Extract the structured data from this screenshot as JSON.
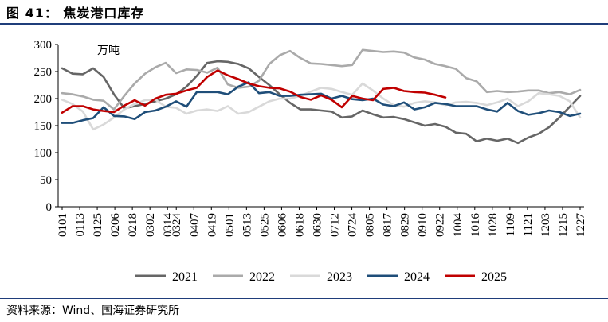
{
  "header": {
    "title": "图 41：  焦炭港口库存"
  },
  "footer": {
    "source": "资料来源：Wind、国海证券研究所"
  },
  "chart_data": {
    "type": "line",
    "title": "焦炭港口库存",
    "unit_label": "万吨",
    "ylim": [
      0,
      300
    ],
    "yticks": [
      0,
      50,
      100,
      150,
      200,
      250,
      300
    ],
    "x_count": 51,
    "xtick_labels": [
      "0101",
      "0113",
      "0125",
      "0206",
      "0218",
      "0302",
      "0314",
      "0324",
      "0407",
      "0419",
      "0501",
      "0513",
      "0525",
      "0606",
      "0618",
      "0630",
      "0712",
      "0724",
      "0805",
      "0817",
      "0829",
      "0910",
      "0922",
      "1004",
      "1016",
      "1028",
      "1109",
      "1121",
      "1203",
      "1215",
      "1227"
    ],
    "xtick_positions": [
      0,
      2,
      4,
      6,
      8,
      10,
      12,
      13,
      15,
      17,
      19,
      21,
      23,
      25,
      27,
      29,
      31,
      33,
      35,
      37,
      39,
      41,
      43,
      45,
      47,
      49,
      51,
      53,
      55,
      57,
      59
    ],
    "x_index_max": 59,
    "legend_position": "bottom",
    "series": [
      {
        "name": "2021",
        "color": "#666666",
        "values": [
          256,
          246,
          245,
          256,
          240,
          208,
          182,
          186,
          190,
          195,
          200,
          208,
          222,
          242,
          266,
          269,
          268,
          264,
          256,
          240,
          225,
          208,
          192,
          180,
          180,
          178,
          176,
          165,
          167,
          178,
          171,
          165,
          166,
          162,
          156,
          150,
          153,
          148,
          137,
          135,
          121,
          126,
          122,
          126,
          118,
          128,
          135,
          147,
          165,
          185,
          205
        ]
      },
      {
        "name": "2022",
        "color": "#aaaaaa",
        "values": [
          210,
          208,
          204,
          198,
          196,
          180,
          205,
          228,
          246,
          258,
          266,
          247,
          254,
          253,
          248,
          257,
          226,
          220,
          222,
          233,
          264,
          280,
          288,
          275,
          265,
          264,
          262,
          260,
          262,
          290,
          288,
          286,
          287,
          285,
          276,
          272,
          264,
          260,
          255,
          238,
          232,
          212,
          214,
          212,
          213,
          215,
          215,
          210,
          212,
          208,
          216
        ]
      },
      {
        "name": "2023",
        "color": "#d9d9d9",
        "values": [
          198,
          190,
          176,
          143,
          152,
          165,
          180,
          190,
          197,
          198,
          185,
          183,
          172,
          178,
          180,
          177,
          186,
          172,
          175,
          185,
          195,
          200,
          200,
          205,
          213,
          220,
          218,
          212,
          207,
          228,
          215,
          200,
          188,
          185,
          192,
          195,
          193,
          188,
          193,
          194,
          192,
          188,
          193,
          200,
          186,
          195,
          210,
          208,
          205,
          195,
          165
        ]
      },
      {
        "name": "2024",
        "color": "#1f4e79",
        "values": [
          155,
          155,
          160,
          164,
          184,
          168,
          167,
          162,
          175,
          178,
          185,
          195,
          185,
          212,
          212,
          212,
          208,
          222,
          230,
          210,
          212,
          205,
          205,
          207,
          208,
          209,
          200,
          205,
          199,
          197,
          200,
          189,
          186,
          193,
          180,
          184,
          192,
          190,
          186,
          186,
          186,
          180,
          176,
          192,
          177,
          170,
          173,
          178,
          175,
          168,
          172
        ]
      },
      {
        "name": "2025",
        "color": "#c00000",
        "values": [
          174,
          186,
          186,
          180,
          177,
          175,
          187,
          197,
          187,
          200,
          207,
          209,
          215,
          220,
          240,
          252,
          243,
          236,
          228,
          223,
          220,
          219,
          213,
          203,
          198,
          206,
          198,
          184,
          205,
          200,
          197,
          218,
          220,
          214,
          212,
          211,
          207,
          202
        ]
      }
    ]
  }
}
